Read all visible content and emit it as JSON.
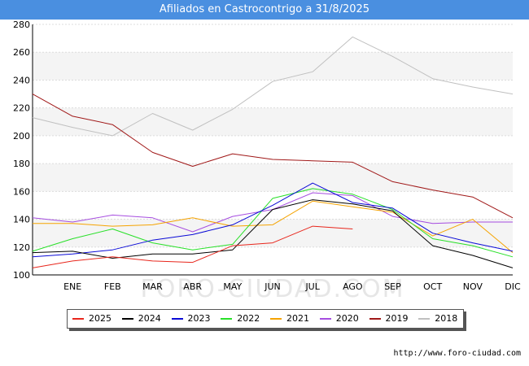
{
  "title": "Afiliados en Castrocontrigo a 31/8/2025",
  "source": "http://www.foro-ciudad.com",
  "watermark": "FORO-CIUDAD.COM",
  "chart_data": {
    "type": "line",
    "title": "Afiliados en Castrocontrigo a 31/8/2025",
    "xlabel": "",
    "ylabel": "",
    "categories": [
      "DIC_prev",
      "ENE",
      "FEB",
      "MAR",
      "ABR",
      "MAY",
      "JUN",
      "JUL",
      "AGO",
      "SEP",
      "OCT",
      "NOV",
      "DIC"
    ],
    "x_tick_labels": [
      "",
      "ENE",
      "FEB",
      "MAR",
      "ABR",
      "MAY",
      "JUN",
      "JUL",
      "AGO",
      "SEP",
      "OCT",
      "NOV",
      "DIC"
    ],
    "ylim": [
      100,
      280
    ],
    "yticks": [
      100,
      120,
      140,
      160,
      180,
      200,
      220,
      240,
      260,
      280
    ],
    "grid": "horizontal",
    "alternating_bands": true,
    "legend_position": "bottom",
    "series": [
      {
        "name": "2025",
        "color": "#e8261c",
        "values": [
          105,
          110,
          113,
          110,
          109,
          121,
          123,
          135,
          133,
          null,
          null,
          null,
          null
        ]
      },
      {
        "name": "2024",
        "color": "#000000",
        "values": [
          116,
          117,
          112,
          115,
          115,
          118,
          147,
          154,
          151,
          146,
          121,
          114,
          105
        ]
      },
      {
        "name": "2023",
        "color": "#0a0ad6",
        "values": [
          113,
          115,
          118,
          125,
          129,
          136,
          150,
          166,
          152,
          148,
          130,
          123,
          117
        ]
      },
      {
        "name": "2022",
        "color": "#28e028",
        "values": [
          117,
          126,
          133,
          123,
          118,
          122,
          155,
          162,
          158,
          147,
          126,
          121,
          113
        ]
      },
      {
        "name": "2021",
        "color": "#f5a300",
        "values": [
          137,
          137,
          135,
          136,
          141,
          135,
          136,
          153,
          149,
          145,
          128,
          140,
          116
        ]
      },
      {
        "name": "2020",
        "color": "#a64de0",
        "values": [
          141,
          138,
          143,
          141,
          131,
          142,
          147,
          159,
          157,
          142,
          137,
          138,
          138
        ]
      },
      {
        "name": "2019",
        "color": "#a01818",
        "values": [
          230,
          214,
          208,
          188,
          178,
          187,
          183,
          182,
          181,
          167,
          161,
          156,
          141
        ]
      },
      {
        "name": "2018",
        "color": "#c0c0c0",
        "values": [
          213,
          206,
          200,
          216,
          204,
          219,
          239,
          246,
          271,
          257,
          241,
          235,
          230
        ]
      }
    ]
  }
}
